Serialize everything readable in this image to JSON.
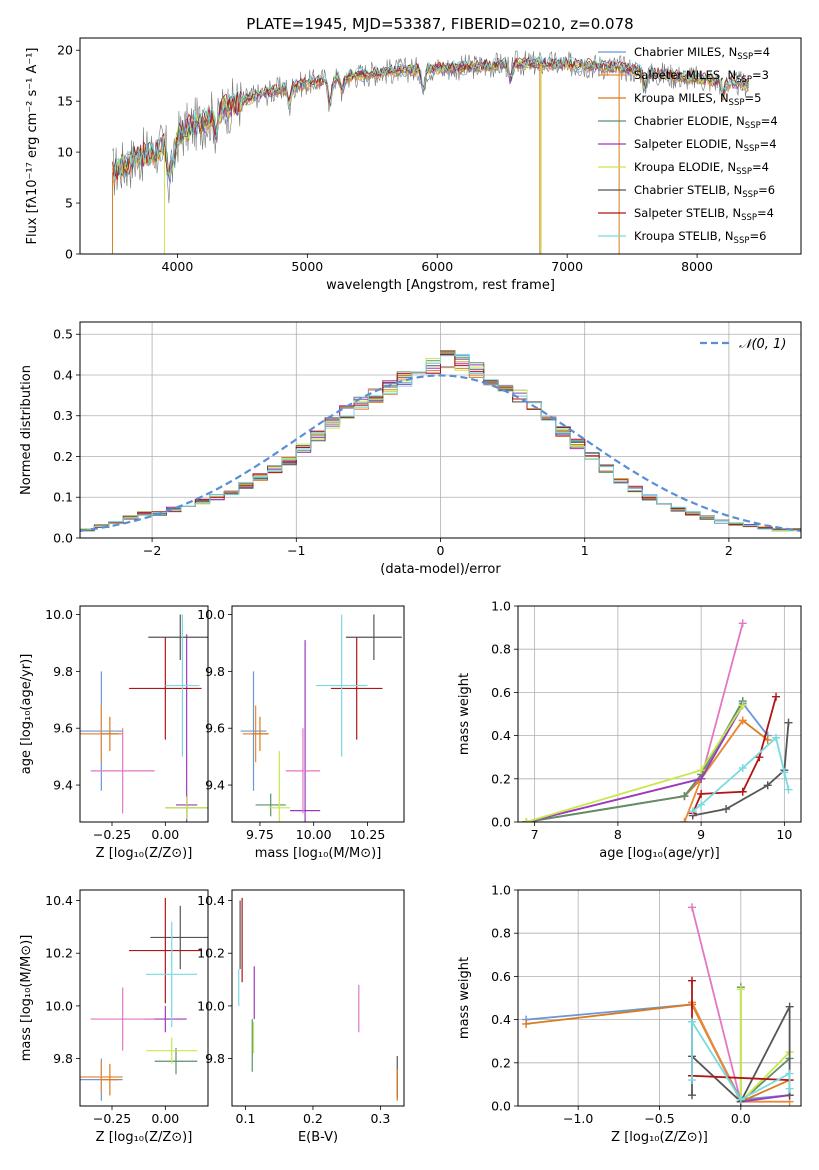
{
  "figure_title": "PLATE=1945, MJD=53387, FIBERID=0210, z=0.078",
  "colors": {
    "Chabrier MILES": "#6a97d6",
    "Salpeter MILES": "#e88a3a",
    "Kroupa MILES": "#d97b1e",
    "Chabrier ELODIE": "#5d8f6c",
    "Salpeter ELODIE": "#9b39bd",
    "Kroupa ELODIE": "#c8e84a",
    "Chabrier STELIB": "#555555",
    "Salpeter STELIB": "#b01515",
    "Kroupa STELIB": "#77dbe0",
    "Gaussian": "#5a8ed6",
    "pink": "#e377c2",
    "grid": "#b0b0b0"
  },
  "chart_data": [
    {
      "id": "spectrum",
      "type": "line",
      "title": "PLATE=1945, MJD=53387, FIBERID=0210, z=0.078",
      "xlabel": "wavelength [Angstrom, rest frame]",
      "ylabel": "Flux [fλ10⁻¹⁷ erg cm⁻² s⁻¹ A⁻¹]",
      "xlim": [
        3250,
        8800
      ],
      "ylim": [
        0,
        21.2
      ],
      "xticks": [
        4000,
        5000,
        6000,
        7000,
        8000
      ],
      "yticks": [
        0,
        5,
        10,
        15,
        20
      ],
      "grid": false,
      "legend_position": "right",
      "legend": [
        {
          "label": "Chabrier MILES, N",
          "sub": "SSP",
          "suffix": "=4",
          "color": "#6a97d6"
        },
        {
          "label": "Salpeter MILES, N",
          "sub": "SSP",
          "suffix": "=3",
          "color": "#e88a3a"
        },
        {
          "label": "Kroupa MILES, N",
          "sub": "SSP",
          "suffix": "=5",
          "color": "#d97b1e"
        },
        {
          "label": "Chabrier ELODIE, N",
          "sub": "SSP",
          "suffix": "=4",
          "color": "#5d8f6c"
        },
        {
          "label": "Salpeter ELODIE, N",
          "sub": "SSP",
          "suffix": "=4",
          "color": "#9b39bd"
        },
        {
          "label": "Kroupa ELODIE, N",
          "sub": "SSP",
          "suffix": "=4",
          "color": "#c8e84a"
        },
        {
          "label": "Chabrier STELIB, N",
          "sub": "SSP",
          "suffix": "=6",
          "color": "#555555"
        },
        {
          "label": "Salpeter STELIB, N",
          "sub": "SSP",
          "suffix": "=4",
          "color": "#b01515"
        },
        {
          "label": "Kroupa STELIB, N",
          "sub": "SSP",
          "suffix": "=6",
          "color": "#77dbe0"
        }
      ],
      "continuum": {
        "x": [
          3500,
          3700,
          3900,
          4000,
          4100,
          4200,
          4400,
          4600,
          4800,
          5000,
          5200,
          5400,
          5600,
          5800,
          6000,
          6200,
          6400,
          6600,
          6800,
          7000,
          7200,
          7400,
          7600,
          7800,
          8000,
          8200,
          8400
        ],
        "y": [
          8.0,
          9.5,
          10.5,
          11.5,
          12.5,
          13.0,
          14.5,
          15.5,
          16.2,
          16.8,
          17.2,
          17.6,
          17.9,
          18.1,
          18.2,
          18.3,
          18.5,
          18.7,
          18.7,
          18.6,
          18.5,
          18.3,
          17.9,
          17.5,
          17.2,
          16.9,
          16.6
        ]
      },
      "features": [
        {
          "x": 3934,
          "depth": 4.0
        },
        {
          "x": 3969,
          "depth": 3.0
        },
        {
          "x": 4300,
          "depth": 2.0
        },
        {
          "x": 4861,
          "depth": 2.0
        },
        {
          "x": 5175,
          "depth": 3.0
        },
        {
          "x": 5270,
          "depth": 1.5
        },
        {
          "x": 5892,
          "depth": 2.5
        },
        {
          "x": 6563,
          "depth": 2.0
        },
        {
          "x": 7600,
          "depth": 2.0
        },
        {
          "x": 8200,
          "depth": 1.5
        }
      ],
      "dropouts": [
        {
          "x": 3500,
          "color": "#d97b1e"
        },
        {
          "x": 3900,
          "color": "#c8e84a"
        },
        {
          "x": 6790,
          "color": "#d97b1e"
        },
        {
          "x": 6800,
          "color": "#c8e84a"
        },
        {
          "x": 7400,
          "color": "#d97b1e"
        }
      ]
    },
    {
      "id": "residuals",
      "type": "area",
      "xlabel": "(data-model)/error",
      "ylabel": "Normed distribution",
      "xlim": [
        -2.5,
        2.5
      ],
      "ylim": [
        0,
        0.53
      ],
      "xticks": [
        -2,
        -1,
        0,
        1,
        2
      ],
      "yticks": [
        0.0,
        0.1,
        0.2,
        0.3,
        0.4,
        0.5
      ],
      "grid": true,
      "legend_position": "top-right",
      "legend": [
        {
          "label": "𝒩(0, 1)",
          "style": "dashed",
          "color": "#5a8ed6"
        }
      ],
      "bin_width": 0.1,
      "bin_start": -2.5,
      "base_hist": [
        0.02,
        0.03,
        0.04,
        0.05,
        0.06,
        0.06,
        0.07,
        0.08,
        0.09,
        0.1,
        0.11,
        0.13,
        0.15,
        0.17,
        0.19,
        0.22,
        0.25,
        0.28,
        0.31,
        0.33,
        0.35,
        0.37,
        0.39,
        0.41,
        0.42,
        0.44,
        0.43,
        0.41,
        0.39,
        0.36,
        0.35,
        0.32,
        0.29,
        0.26,
        0.23,
        0.2,
        0.17,
        0.14,
        0.12,
        0.1,
        0.08,
        0.07,
        0.06,
        0.05,
        0.04,
        0.035,
        0.03,
        0.025,
        0.02,
        0.02
      ],
      "gaussian": {
        "mu": 0,
        "sigma": 1
      }
    },
    {
      "id": "age-vs-Z",
      "type": "scatter",
      "xlabel": "Z [log₁₀(Z/Z⊙)]",
      "ylabel": "age  [log₁₀(age/yr)]",
      "xlim": [
        -0.4,
        0.2
      ],
      "ylim": [
        9.27,
        10.03
      ],
      "xticks": [
        -0.25,
        0.0
      ],
      "xtick_labels": [
        "−0.25",
        "0.00"
      ],
      "yticks": [
        9.4,
        9.6,
        9.8,
        10.0
      ],
      "grid": false,
      "points": [
        {
          "x": -0.3,
          "y": 9.59,
          "xerr": 0.1,
          "yerr": 0.21,
          "color": "#6a97d6"
        },
        {
          "x": -0.3,
          "y": 9.58,
          "xerr": 0.1,
          "yerr": 0.1,
          "color": "#e88a3a"
        },
        {
          "x": -0.26,
          "y": 9.58,
          "xerr": 0.04,
          "yerr": 0.06,
          "color": "#d97b1e"
        },
        {
          "x": 0.1,
          "y": 9.32,
          "xerr": 0.1,
          "yerr": 0.04,
          "color": "#5d8f6c"
        },
        {
          "x": 0.1,
          "y": 9.33,
          "xerr": 0.05,
          "yerr": 0.6,
          "color": "#9b39bd"
        },
        {
          "x": 0.1,
          "y": 9.32,
          "xerr": 0.1,
          "yerr": 0.04,
          "color": "#c8e84a"
        },
        {
          "x": 0.07,
          "y": 9.92,
          "xerr": 0.15,
          "yerr": 0.08,
          "color": "#555555"
        },
        {
          "x": 0.0,
          "y": 9.74,
          "xerr": 0.17,
          "yerr": 0.18,
          "color": "#b01515"
        },
        {
          "x": 0.08,
          "y": 9.75,
          "xerr": 0.08,
          "yerr": 0.25,
          "color": "#77dbe0"
        },
        {
          "x": -0.2,
          "y": 9.45,
          "xerr": 0.15,
          "yerr": 0.15,
          "color": "#e377c2"
        }
      ]
    },
    {
      "id": "age-vs-mass",
      "type": "scatter",
      "xlabel": "mass [log₁₀(M/M⊙)]",
      "ylabel": "",
      "xlim": [
        9.62,
        10.42
      ],
      "ylim": [
        9.27,
        10.03
      ],
      "xticks": [
        9.75,
        10.0,
        10.25
      ],
      "xtick_labels": [
        "9.75",
        "10.00",
        "10.25"
      ],
      "yticks": [
        9.4,
        9.6,
        9.8,
        10.0
      ],
      "grid": false,
      "points": [
        {
          "x": 9.72,
          "y": 9.59,
          "xerr": 0.06,
          "yerr": 0.21,
          "color": "#6a97d6"
        },
        {
          "x": 9.73,
          "y": 9.58,
          "xerr": 0.06,
          "yerr": 0.1,
          "color": "#e88a3a"
        },
        {
          "x": 9.75,
          "y": 9.58,
          "xerr": 0.04,
          "yerr": 0.06,
          "color": "#d97b1e"
        },
        {
          "x": 9.8,
          "y": 9.33,
          "xerr": 0.07,
          "yerr": 0.04,
          "color": "#5d8f6c"
        },
        {
          "x": 9.96,
          "y": 9.31,
          "xerr": 0.07,
          "yerr": 0.6,
          "color": "#9b39bd"
        },
        {
          "x": 9.84,
          "y": 9.32,
          "xerr": 0.05,
          "yerr": 0.2,
          "color": "#c8e84a"
        },
        {
          "x": 10.28,
          "y": 9.92,
          "xerr": 0.13,
          "yerr": 0.08,
          "color": "#555555"
        },
        {
          "x": 10.2,
          "y": 9.74,
          "xerr": 0.12,
          "yerr": 0.18,
          "color": "#b01515"
        },
        {
          "x": 10.13,
          "y": 9.75,
          "xerr": 0.12,
          "yerr": 0.25,
          "color": "#77dbe0"
        },
        {
          "x": 9.95,
          "y": 9.45,
          "xerr": 0.08,
          "yerr": 0.15,
          "color": "#e377c2"
        }
      ]
    },
    {
      "id": "weight-vs-age",
      "type": "line",
      "xlabel": "age  [log₁₀(age/yr)]",
      "ylabel": "mass weight",
      "xlim": [
        6.8,
        10.2
      ],
      "ylim": [
        0,
        1
      ],
      "xticks": [
        7,
        8,
        9,
        10
      ],
      "yticks": [
        0.0,
        0.2,
        0.4,
        0.6,
        0.8,
        1.0
      ],
      "grid": true,
      "series": [
        {
          "color": "#e377c2",
          "x": [
            6.9,
            9.0,
            9.5
          ],
          "y": [
            0.0,
            0.2,
            0.92
          ]
        },
        {
          "color": "#6a97d6",
          "x": [
            6.9,
            8.8,
            9.0,
            9.5,
            9.8
          ],
          "y": [
            0.0,
            0.12,
            0.2,
            0.55,
            0.4
          ]
        },
        {
          "color": "#d97b1e",
          "x": [
            6.9,
            8.8,
            9.0,
            9.5,
            9.8
          ],
          "y": [
            0.0,
            0.12,
            0.2,
            0.47,
            0.38
          ]
        },
        {
          "color": "#e88a3a",
          "x": [
            8.8,
            9.0,
            9.5
          ],
          "y": [
            0.0,
            0.2,
            0.47
          ]
        },
        {
          "color": "#5d8f6c",
          "x": [
            6.9,
            8.8,
            9.0,
            9.5
          ],
          "y": [
            0.0,
            0.12,
            0.22,
            0.56
          ]
        },
        {
          "color": "#9b39bd",
          "x": [
            6.9,
            9.0,
            9.5
          ],
          "y": [
            0.0,
            0.2,
            0.54
          ]
        },
        {
          "color": "#c8e84a",
          "x": [
            6.9,
            9.0,
            9.5
          ],
          "y": [
            0.0,
            0.24,
            0.54
          ]
        },
        {
          "color": "#555555",
          "x": [
            8.9,
            9.3,
            9.8,
            10.0,
            10.05
          ],
          "y": [
            0.03,
            0.06,
            0.17,
            0.24,
            0.46
          ]
        },
        {
          "color": "#b01515",
          "x": [
            8.9,
            9.0,
            9.5,
            9.7,
            9.9
          ],
          "y": [
            0.04,
            0.13,
            0.14,
            0.3,
            0.58
          ]
        },
        {
          "color": "#77dbe0",
          "x": [
            8.9,
            9.0,
            9.5,
            9.9,
            10.0,
            10.05
          ],
          "y": [
            0.05,
            0.08,
            0.25,
            0.39,
            0.23,
            0.15
          ]
        }
      ]
    },
    {
      "id": "mass-vs-Z",
      "type": "scatter",
      "xlabel": "Z [log₁₀(Z/Z⊙)]",
      "ylabel": "mass [log₁₀(M/M⊙)]",
      "xlim": [
        -0.4,
        0.2
      ],
      "ylim": [
        9.62,
        10.44
      ],
      "xticks": [
        -0.25,
        0.0
      ],
      "xtick_labels": [
        "−0.25",
        "0.00"
      ],
      "yticks": [
        9.8,
        10.0,
        10.2,
        10.4
      ],
      "grid": false,
      "points": [
        {
          "x": -0.3,
          "y": 9.72,
          "xerr": 0.1,
          "yerr": 0.08,
          "color": "#6a97d6"
        },
        {
          "x": -0.3,
          "y": 9.73,
          "xerr": 0.1,
          "yerr": 0.06,
          "color": "#e88a3a"
        },
        {
          "x": -0.26,
          "y": 9.72,
          "xerr": 0.04,
          "yerr": 0.06,
          "color": "#d97b1e"
        },
        {
          "x": 0.05,
          "y": 9.79,
          "xerr": 0.1,
          "yerr": 0.05,
          "color": "#5d8f6c"
        },
        {
          "x": 0.0,
          "y": 9.95,
          "xerr": 0.1,
          "yerr": 0.05,
          "color": "#9b39bd"
        },
        {
          "x": 0.03,
          "y": 9.83,
          "xerr": 0.12,
          "yerr": 0.05,
          "color": "#c8e84a"
        },
        {
          "x": 0.07,
          "y": 10.26,
          "xerr": 0.14,
          "yerr": 0.12,
          "color": "#555555"
        },
        {
          "x": 0.0,
          "y": 10.21,
          "xerr": 0.17,
          "yerr": 0.2,
          "color": "#b01515"
        },
        {
          "x": 0.03,
          "y": 10.12,
          "xerr": 0.12,
          "yerr": 0.2,
          "color": "#77dbe0"
        },
        {
          "x": -0.2,
          "y": 9.95,
          "xerr": 0.15,
          "yerr": 0.12,
          "color": "#e377c2"
        }
      ]
    },
    {
      "id": "mass-vs-EBV",
      "type": "scatter",
      "xlabel": "E(B-V)",
      "ylabel": "",
      "xlim": [
        0.08,
        0.335
      ],
      "ylim": [
        9.62,
        10.44
      ],
      "xticks": [
        0.1,
        0.2,
        0.3
      ],
      "xtick_labels": [
        "0.1",
        "0.2",
        "0.3"
      ],
      "yticks": [
        9.8,
        10.0,
        10.2,
        10.4
      ],
      "grid": false,
      "points": [
        {
          "x": 0.092,
          "y": 10.27,
          "xerr": 0.0,
          "yerr": 0.13,
          "color": "#555555"
        },
        {
          "x": 0.095,
          "y": 10.25,
          "xerr": 0.0,
          "yerr": 0.16,
          "color": "#b01515"
        },
        {
          "x": 0.09,
          "y": 10.07,
          "xerr": 0.0,
          "yerr": 0.07,
          "color": "#77dbe0"
        },
        {
          "x": 0.113,
          "y": 10.05,
          "xerr": 0.0,
          "yerr": 0.1,
          "color": "#9b39bd"
        },
        {
          "x": 0.11,
          "y": 9.85,
          "xerr": 0.0,
          "yerr": 0.1,
          "color": "#5d8f6c"
        },
        {
          "x": 0.112,
          "y": 9.88,
          "xerr": 0.0,
          "yerr": 0.06,
          "color": "#c8e84a"
        },
        {
          "x": 0.268,
          "y": 9.99,
          "xerr": 0.0,
          "yerr": 0.09,
          "color": "#e377c2"
        },
        {
          "x": 0.325,
          "y": 9.73,
          "xerr": 0.0,
          "yerr": 0.08,
          "color": "#555555"
        },
        {
          "x": 0.325,
          "y": 9.7,
          "xerr": 0.0,
          "yerr": 0.06,
          "color": "#d97b1e"
        }
      ]
    },
    {
      "id": "weight-vs-Z",
      "type": "line",
      "xlabel": "Z [log₁₀(Z/Z⊙)]",
      "ylabel": "mass weight",
      "xlim": [
        -1.37,
        0.37
      ],
      "ylim": [
        0,
        1
      ],
      "xticks": [
        -1.0,
        -0.5,
        0.0
      ],
      "xtick_labels": [
        "−1.0",
        "−0.5",
        "0.0"
      ],
      "yticks": [
        0.0,
        0.2,
        0.4,
        0.6,
        0.8,
        1.0
      ],
      "grid": true,
      "series": [
        {
          "color": "#e377c2",
          "x": [
            -0.3,
            0.0
          ],
          "y": [
            0.92,
            0.02
          ]
        },
        {
          "color": "#6a97d6",
          "x": [
            -1.32,
            -0.3,
            0.0,
            0.3
          ],
          "y": [
            0.4,
            0.47,
            0.03,
            0.05
          ]
        },
        {
          "color": "#d97b1e",
          "x": [
            -1.32,
            -0.3,
            0.0,
            0.3
          ],
          "y": [
            0.38,
            0.47,
            0.02,
            0.12
          ]
        },
        {
          "color": "#e88a3a",
          "x": [
            -0.3,
            0.0,
            0.3
          ],
          "y": [
            0.48,
            0.02,
            0.02
          ]
        },
        {
          "color": "#5d8f6c",
          "x": [
            0.0,
            0.0,
            0.3
          ],
          "y": [
            0.55,
            0.02,
            0.22
          ]
        },
        {
          "color": "#c8e84a",
          "x": [
            0.0,
            0.0,
            0.3
          ],
          "y": [
            0.54,
            0.02,
            0.25
          ]
        },
        {
          "color": "#9b39bd",
          "x": [
            0.0,
            0.3
          ],
          "y": [
            0.02,
            0.05
          ]
        },
        {
          "color": "#555555",
          "x": [
            -0.3,
            -0.3,
            0.0,
            0.3,
            0.3
          ],
          "y": [
            0.05,
            0.23,
            0.02,
            0.46,
            0.05
          ]
        },
        {
          "color": "#b01515",
          "x": [
            -0.3,
            -0.3,
            0.3
          ],
          "y": [
            0.58,
            0.14,
            0.12
          ]
        },
        {
          "color": "#77dbe0",
          "x": [
            -0.3,
            -0.3,
            0.0,
            0.3,
            0.3
          ],
          "y": [
            0.12,
            0.39,
            0.03,
            0.15,
            0.08
          ]
        }
      ]
    }
  ]
}
